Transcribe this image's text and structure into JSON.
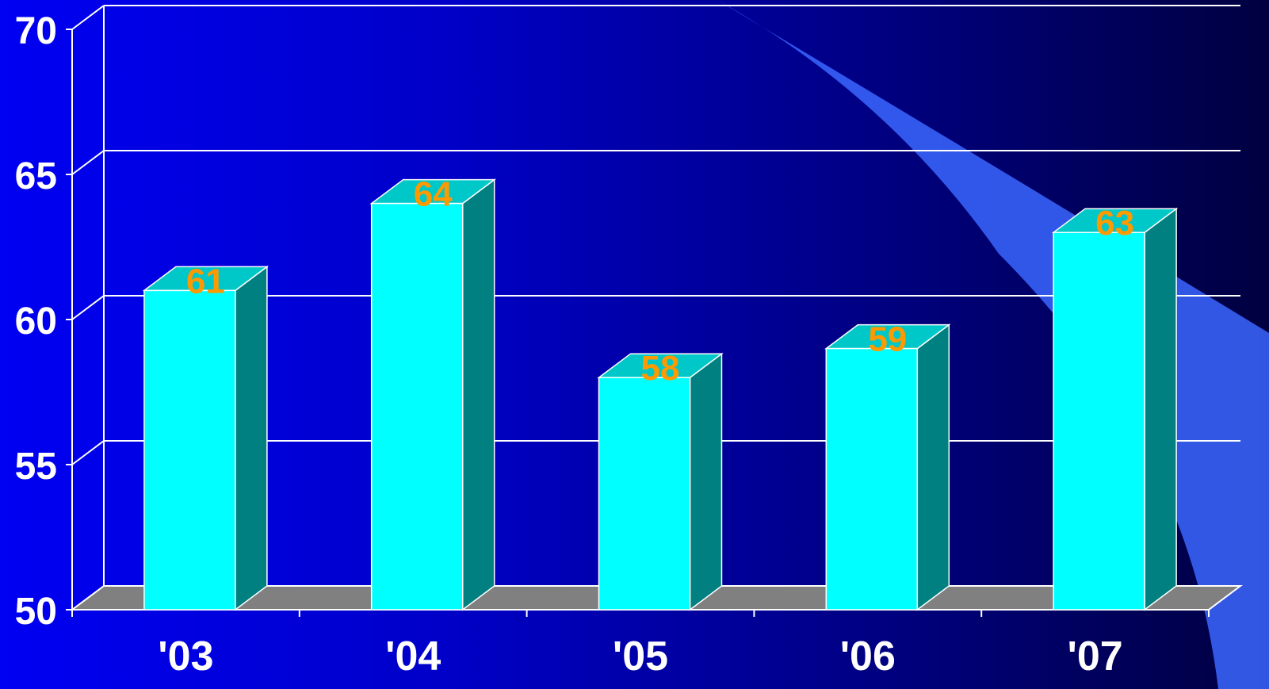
{
  "colors": {
    "bar_front": "#00ffff",
    "bar_top": "#00c8c8",
    "bar_side": "#008080",
    "floor": "#808080",
    "grid": "#ffffff",
    "data_label": "#ff9900",
    "axis_text": "#ffffff",
    "swoosh": "#3a66ff"
  },
  "chart_data": {
    "type": "bar",
    "categories": [
      "'03",
      "'04",
      "'05",
      "'06",
      "'07"
    ],
    "values": [
      61,
      64,
      58,
      59,
      63
    ],
    "data_labels": [
      "61",
      "64",
      "58",
      "59",
      "63"
    ],
    "ylim": [
      50,
      70
    ],
    "yticks": [
      50,
      55,
      60,
      65,
      70
    ],
    "ytick_labels": [
      "50",
      "55",
      "60",
      "65",
      "70"
    ],
    "title": "",
    "xlabel": "",
    "ylabel": "",
    "grid": true,
    "legend": "none",
    "style": "3d-column"
  }
}
